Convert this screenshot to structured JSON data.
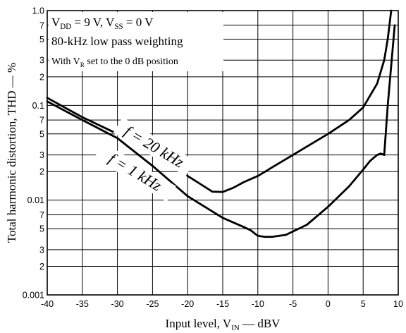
{
  "chart_data": {
    "type": "line",
    "title": "",
    "xlabel": "Input level, V",
    "xlabel_sub": "IN",
    "xlabel_unit": " — dBV",
    "ylabel": "Total harmonic distortion, THD — %",
    "xlim": [
      -40,
      10
    ],
    "ylim": [
      0.001,
      1.0
    ],
    "yscale": "log",
    "grid": true,
    "x_ticks": [
      -40,
      -35,
      -30,
      -25,
      -20,
      -15,
      -10,
      -5,
      0,
      5,
      10
    ],
    "x_tick_labels": [
      "-40",
      "-35",
      "-30",
      "-25",
      "-20",
      "-15",
      "-10",
      "-5",
      "0",
      "5",
      "10"
    ],
    "y_major": [
      {
        "value": 1.0,
        "label": "1.0"
      },
      {
        "value": 0.1,
        "label": "0.1"
      },
      {
        "value": 0.01,
        "label": "0.01"
      },
      {
        "value": 0.001,
        "label": "0.001"
      }
    ],
    "y_minor": [
      {
        "value": 0.7,
        "label": "7"
      },
      {
        "value": 0.5,
        "label": "5"
      },
      {
        "value": 0.3,
        "label": "3"
      },
      {
        "value": 0.2,
        "label": "2"
      },
      {
        "value": 0.07,
        "label": "7"
      },
      {
        "value": 0.05,
        "label": "5"
      },
      {
        "value": 0.03,
        "label": "3"
      },
      {
        "value": 0.02,
        "label": "2"
      },
      {
        "value": 0.007,
        "label": "7"
      },
      {
        "value": 0.005,
        "label": "5"
      },
      {
        "value": 0.003,
        "label": "3"
      },
      {
        "value": 0.002,
        "label": "2"
      }
    ],
    "conditions": [
      {
        "text": "V",
        "sub": "DD",
        "tail": " = 9 V, V",
        "sub2": "SS",
        "tail2": " = 0 V"
      },
      {
        "text": "80-kHz low pass weighting"
      },
      {
        "text": "With V",
        "sub": "R",
        "tail": " set to the 0 dB position"
      }
    ],
    "series": [
      {
        "name": "f = 20 kHz",
        "x": [
          -40,
          -35,
          -30,
          -27,
          -25,
          -22,
          -20,
          -18,
          -16.5,
          -15,
          -13.5,
          -12,
          -10,
          -5,
          0,
          3,
          5,
          7,
          8,
          8.5,
          9
        ],
        "y": [
          0.12,
          0.075,
          0.05,
          0.038,
          0.032,
          0.023,
          0.018,
          0.0145,
          0.0123,
          0.0122,
          0.0135,
          0.0155,
          0.018,
          0.03,
          0.05,
          0.07,
          0.095,
          0.17,
          0.3,
          0.5,
          1.0
        ]
      },
      {
        "name": "f = 1 kHz",
        "x": [
          -40,
          -35,
          -30,
          -25,
          -20,
          -15,
          -12,
          -11,
          -10,
          -9,
          -8,
          -6,
          -3,
          0,
          3,
          5,
          6,
          7,
          7.5,
          8,
          8.5,
          9.5
        ],
        "y": [
          0.11,
          0.07,
          0.045,
          0.023,
          0.011,
          0.0065,
          0.0052,
          0.0048,
          0.0042,
          0.0041,
          0.0041,
          0.0043,
          0.0055,
          0.0085,
          0.014,
          0.021,
          0.026,
          0.03,
          0.031,
          0.03,
          0.1,
          0.7
        ]
      }
    ],
    "curve_labels": [
      {
        "series": "f = 20 kHz",
        "text": "f = 20 kHz"
      },
      {
        "series": "f = 1 kHz",
        "text": "f = 1 kHz"
      }
    ]
  }
}
